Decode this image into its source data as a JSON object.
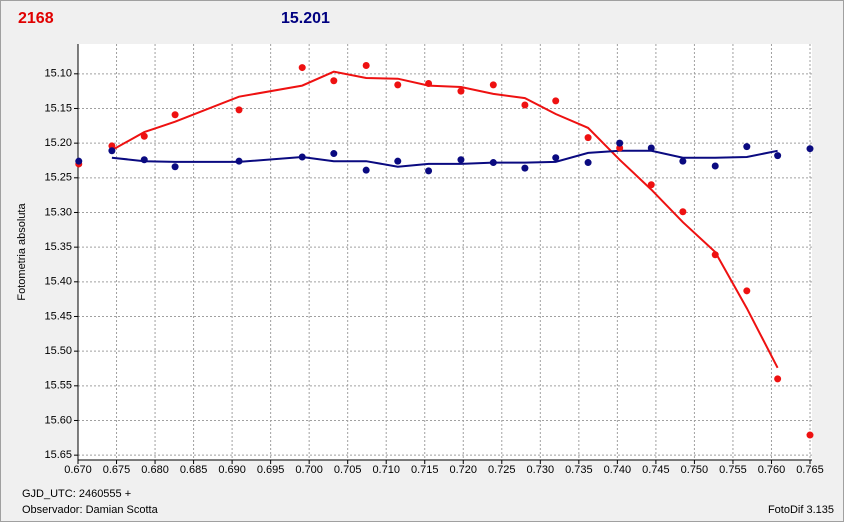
{
  "chart_data": {
    "type": "scatter",
    "title": "2168",
    "subtitle": "15.201",
    "title_color": "#e00000",
    "subtitle_color": "#000080",
    "y_label": "Fotometria absoluta",
    "footer_left": [
      "GJD_UTC: 2460555 +",
      "Observador: Damian Scotta"
    ],
    "footer_right": "FotoDif 3.135",
    "xlim": [
      0.67,
      0.765
    ],
    "ylim": [
      15.057,
      15.657
    ],
    "y_inverted": true,
    "grid": true,
    "xticks": [
      {
        "value": 0.67,
        "label": "0.670"
      },
      0.675,
      {
        "value": 0.68,
        "label": "0.680"
      },
      0.685,
      {
        "value": 0.69,
        "label": "0.690"
      },
      0.695,
      {
        "value": 0.7,
        "label": "0.700"
      },
      0.705,
      {
        "value": 0.71,
        "label": "0.710"
      },
      0.715,
      {
        "value": 0.72,
        "label": "0.720"
      },
      0.725,
      {
        "value": 0.73,
        "label": "0.730"
      },
      0.735,
      {
        "value": 0.74,
        "label": "0.740"
      },
      0.745,
      {
        "value": 0.75,
        "label": "0.750"
      },
      0.755,
      {
        "value": 0.76,
        "label": "0.760"
      },
      0.765
    ],
    "yticks": [
      {
        "value": 15.1,
        "label": "15.10"
      },
      15.15,
      {
        "value": 15.2,
        "label": "15.20"
      },
      15.25,
      {
        "value": 15.3,
        "label": "15.30"
      },
      15.35,
      {
        "value": 15.4,
        "label": "15.40"
      },
      15.45,
      {
        "value": 15.5,
        "label": "15.50"
      },
      15.55,
      {
        "value": 15.6,
        "label": "15.60"
      },
      15.65
    ],
    "series": [
      {
        "mode": "markers",
        "color": "#ee1111",
        "x": [
          0.6701,
          0.6744,
          0.6786,
          0.6826,
          0.6909,
          0.6991,
          0.7032,
          0.7074,
          0.7115,
          0.7155,
          0.7197,
          0.7239,
          0.728,
          0.732,
          0.7362,
          0.7403,
          0.7444,
          0.7485,
          0.7527,
          0.7568,
          0.7608,
          0.765
        ],
        "values": [
          15.23,
          15.204,
          15.19,
          15.159,
          15.152,
          15.091,
          15.11,
          15.088,
          15.116,
          15.114,
          15.125,
          15.116,
          15.145,
          15.139,
          15.192,
          15.207,
          15.26,
          15.299,
          15.361,
          15.413,
          15.54,
          15.621
        ]
      },
      {
        "mode": "markers",
        "color": "#0a0a80",
        "x": [
          0.6701,
          0.6744,
          0.6786,
          0.6826,
          0.6909,
          0.6991,
          0.7032,
          0.7074,
          0.7115,
          0.7155,
          0.7197,
          0.7239,
          0.728,
          0.732,
          0.7362,
          0.7403,
          0.7444,
          0.7485,
          0.7527,
          0.7568,
          0.7608,
          0.765
        ],
        "values": [
          15.226,
          15.211,
          15.224,
          15.234,
          15.226,
          15.22,
          15.215,
          15.239,
          15.226,
          15.24,
          15.224,
          15.228,
          15.236,
          15.221,
          15.228,
          15.2,
          15.207,
          15.226,
          15.233,
          15.205,
          15.218,
          15.208
        ]
      },
      {
        "mode": "line",
        "color": "#ee1111",
        "x": [
          0.6744,
          0.6786,
          0.6826,
          0.6909,
          0.6991,
          0.7032,
          0.7074,
          0.7115,
          0.7155,
          0.7197,
          0.7239,
          0.728,
          0.732,
          0.7362,
          0.7403,
          0.7444,
          0.7485,
          0.7527,
          0.7568,
          0.7608
        ],
        "values": [
          15.21,
          15.184,
          15.169,
          15.133,
          15.117,
          15.097,
          15.106,
          15.107,
          15.117,
          15.119,
          15.129,
          15.135,
          15.158,
          15.178,
          15.224,
          15.267,
          15.314,
          15.357,
          15.438,
          15.524
        ]
      },
      {
        "mode": "line",
        "color": "#0a0a80",
        "x": [
          0.6744,
          0.6786,
          0.6826,
          0.6909,
          0.6991,
          0.7032,
          0.7074,
          0.7115,
          0.7155,
          0.7197,
          0.7239,
          0.728,
          0.732,
          0.7362,
          0.7403,
          0.7444,
          0.7485,
          0.7527,
          0.7568,
          0.7608
        ],
        "values": [
          15.221,
          15.226,
          15.227,
          15.227,
          15.22,
          15.226,
          15.226,
          15.234,
          15.23,
          15.23,
          15.228,
          15.228,
          15.227,
          15.214,
          15.211,
          15.211,
          15.221,
          15.221,
          15.22,
          15.211
        ]
      }
    ]
  }
}
